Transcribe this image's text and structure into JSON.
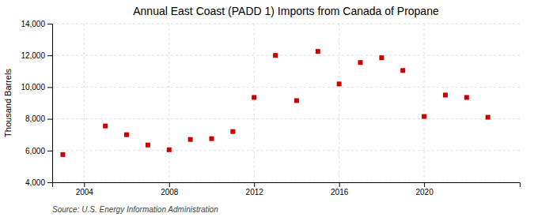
{
  "chart_data": {
    "type": "scatter",
    "title": "Annual East Coast (PADD 1) Imports from Canada of Propane",
    "ylabel": "Thousand Barrels",
    "annotations": [
      "Source: U.S. Energy Information Administration"
    ],
    "x": [
      2003,
      2005,
      2006,
      2007,
      2008,
      2009,
      2010,
      2011,
      2012,
      2013,
      2014,
      2015,
      2016,
      2017,
      2018,
      2019,
      2020,
      2021,
      2022,
      2023
    ],
    "values": [
      5750,
      7550,
      7000,
      6350,
      6050,
      6700,
      6750,
      7200,
      9350,
      12000,
      9150,
      12250,
      10200,
      11550,
      11850,
      11050,
      8150,
      9500,
      9350,
      8100
    ],
    "color": "#cc0000",
    "marker": "square",
    "xlim": [
      2002.5,
      2024.5
    ],
    "ylim": [
      4000,
      14000
    ],
    "xticks": [
      2004,
      2008,
      2012,
      2016,
      2020
    ],
    "yticks": [
      {
        "value": 4000,
        "label": "4,000"
      },
      {
        "value": 6000,
        "label": "6,000"
      },
      {
        "value": 8000,
        "label": "8,000"
      },
      {
        "value": 10000,
        "label": "10,000"
      },
      {
        "value": 12000,
        "label": "12,000"
      },
      {
        "value": 14000,
        "label": "14,000"
      }
    ],
    "grid": true
  }
}
